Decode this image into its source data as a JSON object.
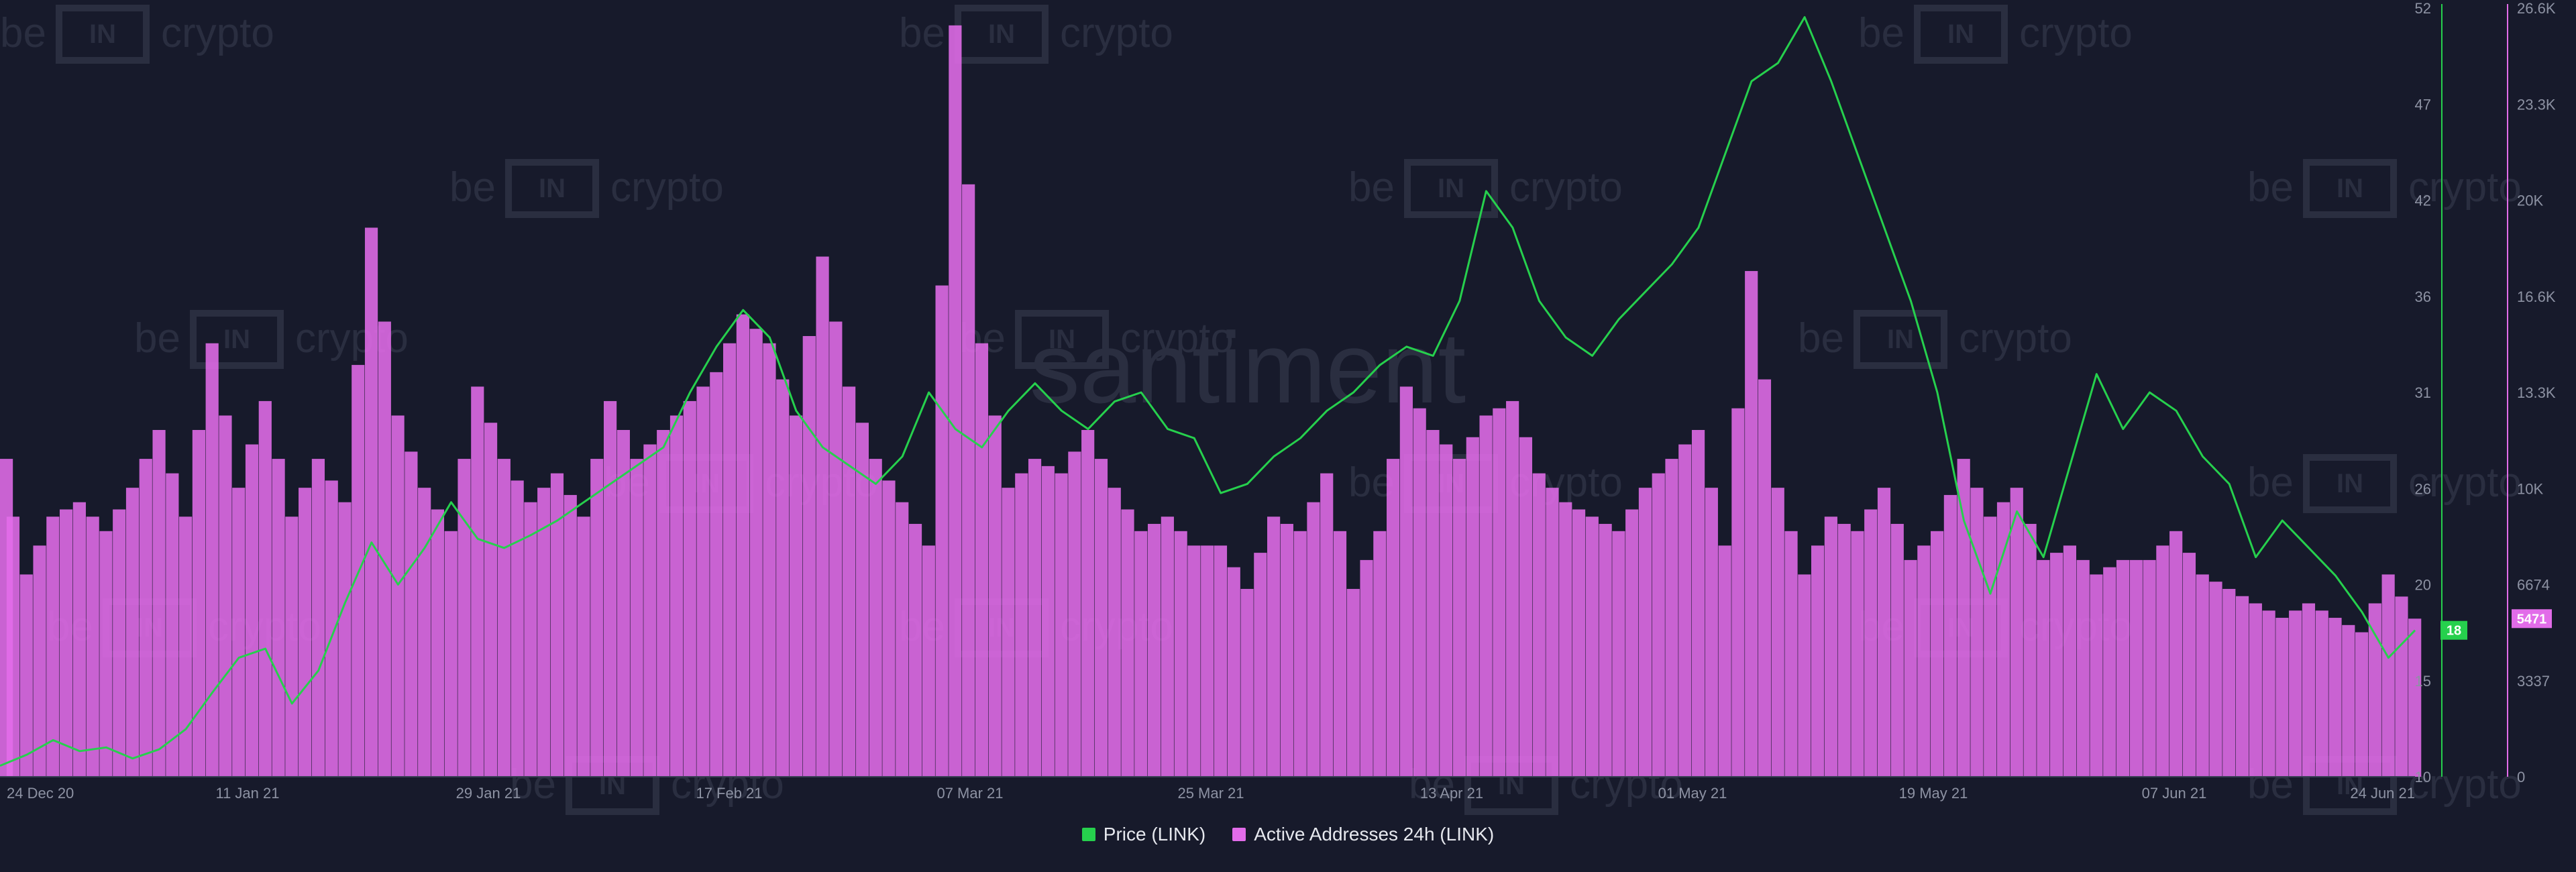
{
  "chart_data": {
    "type": "bar+line",
    "watermark": {
      "brand_left": "be",
      "brand_box": "IN",
      "brand_right": "crypto",
      "center": "santiment"
    },
    "x_ticks": [
      "24 Dec 20",
      "11 Jan 21",
      "29 Jan 21",
      "17 Feb 21",
      "07 Mar 21",
      "25 Mar 21",
      "13 Apr 21",
      "01 May 21",
      "19 May 21",
      "07 Jun 21",
      "24 Jun 21"
    ],
    "price_axis": {
      "ticks": [
        10,
        15,
        20,
        26,
        31,
        36,
        42,
        47,
        52
      ],
      "ylim": [
        10,
        52
      ],
      "color": "#26d04d"
    },
    "addresses_axis": {
      "ticks": [
        "0",
        "3337",
        "6674",
        "10K",
        "13.3K",
        "16.6K",
        "20K",
        "23.3K",
        "26.6K"
      ],
      "ylim": [
        0,
        26600
      ],
      "color": "#e26ce9"
    },
    "series": [
      {
        "name": "Price (LINK)",
        "color": "#26d04d",
        "type": "line",
        "last_value": "18",
        "x": [
          "2020-12-24",
          "2020-12-26",
          "2020-12-28",
          "2020-12-30",
          "2021-01-01",
          "2021-01-03",
          "2021-01-05",
          "2021-01-07",
          "2021-01-09",
          "2021-01-11",
          "2021-01-13",
          "2021-01-15",
          "2021-01-17",
          "2021-01-19",
          "2021-01-21",
          "2021-01-23",
          "2021-01-25",
          "2021-01-27",
          "2021-01-29",
          "2021-01-31",
          "2021-02-02",
          "2021-02-04",
          "2021-02-06",
          "2021-02-08",
          "2021-02-10",
          "2021-02-12",
          "2021-02-14",
          "2021-02-16",
          "2021-02-18",
          "2021-02-20",
          "2021-02-22",
          "2021-02-24",
          "2021-02-26",
          "2021-02-28",
          "2021-03-02",
          "2021-03-04",
          "2021-03-06",
          "2021-03-08",
          "2021-03-10",
          "2021-03-12",
          "2021-03-14",
          "2021-03-16",
          "2021-03-18",
          "2021-03-20",
          "2021-03-22",
          "2021-03-24",
          "2021-03-26",
          "2021-03-28",
          "2021-03-30",
          "2021-04-01",
          "2021-04-03",
          "2021-04-05",
          "2021-04-07",
          "2021-04-09",
          "2021-04-11",
          "2021-04-13",
          "2021-04-15",
          "2021-04-17",
          "2021-04-19",
          "2021-04-21",
          "2021-04-23",
          "2021-04-25",
          "2021-04-27",
          "2021-04-29",
          "2021-05-01",
          "2021-05-03",
          "2021-05-05",
          "2021-05-07",
          "2021-05-09",
          "2021-05-11",
          "2021-05-13",
          "2021-05-15",
          "2021-05-17",
          "2021-05-19",
          "2021-05-21",
          "2021-05-23",
          "2021-05-25",
          "2021-05-27",
          "2021-05-29",
          "2021-05-31",
          "2021-06-02",
          "2021-06-04",
          "2021-06-06",
          "2021-06-08",
          "2021-06-10",
          "2021-06-12",
          "2021-06-14",
          "2021-06-16",
          "2021-06-18",
          "2021-06-20",
          "2021-06-22",
          "2021-06-24"
        ],
        "values": [
          10.6,
          11.2,
          12.0,
          11.4,
          11.6,
          11.0,
          11.5,
          12.6,
          14.6,
          16.5,
          17.0,
          14.0,
          15.8,
          19.5,
          22.8,
          20.5,
          22.5,
          25.0,
          23.0,
          22.5,
          23.2,
          24.0,
          25.0,
          26.0,
          27.0,
          28.0,
          31.0,
          33.5,
          35.5,
          34.0,
          30.0,
          28.0,
          27.0,
          26.0,
          27.5,
          31.0,
          29.0,
          28.0,
          30.0,
          31.5,
          30.0,
          29.0,
          30.5,
          31.0,
          29.0,
          28.5,
          25.5,
          26.0,
          27.5,
          28.5,
          30.0,
          31.0,
          32.5,
          33.5,
          33.0,
          36.0,
          42.0,
          40.0,
          36.0,
          34.0,
          33.0,
          35.0,
          36.5,
          38.0,
          40.0,
          44.0,
          48.0,
          49.0,
          51.5,
          48.0,
          44.0,
          40.0,
          36.0,
          31.0,
          24.0,
          20.0,
          24.5,
          22.0,
          27.0,
          32.0,
          29.0,
          31.0,
          30.0,
          27.5,
          26.0,
          22.0,
          24.0,
          22.5,
          21.0,
          19.0,
          16.5,
          18.0
        ]
      },
      {
        "name": "Active Addresses 24h (LINK)",
        "color": "#e26ce9",
        "type": "bar",
        "last_value": "5471",
        "x": [
          "2020-12-24",
          "2020-12-26",
          "2020-12-28",
          "2020-12-30",
          "2021-01-01",
          "2021-01-03",
          "2021-01-05",
          "2021-01-07",
          "2021-01-09",
          "2021-01-11",
          "2021-01-13",
          "2021-01-15",
          "2021-01-17",
          "2021-01-19",
          "2021-01-21",
          "2021-01-23",
          "2021-01-25",
          "2021-01-27",
          "2021-01-29",
          "2021-01-31",
          "2021-02-02",
          "2021-02-04",
          "2021-02-06",
          "2021-02-08",
          "2021-02-10",
          "2021-02-12",
          "2021-02-14",
          "2021-02-16",
          "2021-02-18",
          "2021-02-20",
          "2021-02-22",
          "2021-02-24",
          "2021-02-26",
          "2021-02-28",
          "2021-03-02",
          "2021-03-04",
          "2021-03-06",
          "2021-03-08",
          "2021-03-10",
          "2021-03-12",
          "2021-03-14",
          "2021-03-16",
          "2021-03-18",
          "2021-03-20",
          "2021-03-22",
          "2021-03-24",
          "2021-03-26",
          "2021-03-28",
          "2021-03-30",
          "2021-04-01",
          "2021-04-03",
          "2021-04-05",
          "2021-04-07",
          "2021-04-09",
          "2021-04-11",
          "2021-04-13",
          "2021-04-15",
          "2021-04-17",
          "2021-04-19",
          "2021-04-21",
          "2021-04-23",
          "2021-04-25",
          "2021-04-27",
          "2021-04-29",
          "2021-05-01",
          "2021-05-03",
          "2021-05-05",
          "2021-05-07",
          "2021-05-09",
          "2021-05-11",
          "2021-05-13",
          "2021-05-15",
          "2021-05-17",
          "2021-05-19",
          "2021-05-21",
          "2021-05-23",
          "2021-05-25",
          "2021-05-27",
          "2021-05-29",
          "2021-05-31",
          "2021-06-02",
          "2021-06-04",
          "2021-06-06",
          "2021-06-08",
          "2021-06-10",
          "2021-06-12",
          "2021-06-14",
          "2021-06-16",
          "2021-06-18",
          "2021-06-20",
          "2021-06-22",
          "2021-06-24"
        ],
        "values": [
          11000,
          7000,
          9000,
          9500,
          8500,
          10000,
          12000,
          9000,
          15000,
          10000,
          13000,
          9000,
          11000,
          9500,
          19000,
          12500,
          10000,
          8500,
          13500,
          11000,
          9500,
          10500,
          9000,
          13000,
          11000,
          12000,
          13000,
          14000,
          16000,
          15000,
          12500,
          18000,
          13500,
          11000,
          9500,
          8000,
          26000,
          15000,
          10000,
          11000,
          10500,
          12000,
          10000,
          8500,
          9000,
          8000,
          8000,
          6500,
          9000,
          8500,
          10500,
          6500,
          8500,
          13500,
          12000,
          11000,
          12500,
          13000,
          10500,
          9500,
          9000,
          8500,
          10000,
          11000,
          12000,
          8000,
          17500,
          10000,
          7000,
          9000,
          8500,
          10000,
          7500,
          8500,
          11000,
          9000,
          10000,
          7500,
          8000,
          7000,
          7500,
          7500,
          8500,
          7000,
          6500,
          6000,
          5500,
          6000,
          5500,
          5000,
          7000,
          5471
        ]
      }
    ],
    "legend": {
      "placement": "bottom-center"
    },
    "grid": false
  }
}
